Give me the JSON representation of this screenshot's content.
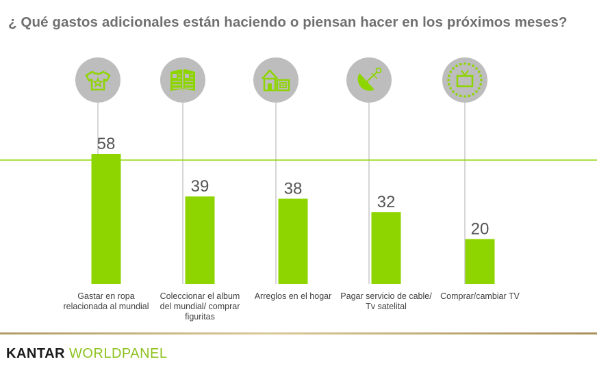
{
  "title": "¿ Qué gastos adicionales están haciendo o piensan hacer en los próximos meses?",
  "chart_data": {
    "type": "bar",
    "categories": [
      "Gastar en ropa relacionada al mundial",
      "Coleccionar el album del mundial/ comprar figuritas",
      "Arreglos en el hogar",
      "Pagar servicio de cable/ Tv satelital",
      "Comprar/cambiar TV"
    ],
    "category_lines": [
      [
        "Gastar en ropa",
        "relacionada al mundial"
      ],
      [
        "Coleccionar el album",
        "del mundial/ comprar",
        "figuritas"
      ],
      [
        "Arreglos en el hogar"
      ],
      [
        "Pagar servicio de cable/",
        "Tv satelital"
      ],
      [
        "Comprar/cambiar TV"
      ]
    ],
    "values": [
      58,
      39,
      38,
      32,
      20
    ],
    "icons": [
      "tshirt-icon",
      "album-icon",
      "house-icon",
      "satellite-dish-icon",
      "tv-icon"
    ],
    "reference_line": 58,
    "colors": {
      "bar": "#8ed500",
      "icon_circle": "#bdbdbd",
      "icon_fill": "#8ed500",
      "stem": "#c8c8c8",
      "reference_line": "#8ed500",
      "value_label": "#555555"
    }
  },
  "footer": {
    "brand_part1": "KANTAR",
    "brand_part2": "WORLDPANEL"
  }
}
